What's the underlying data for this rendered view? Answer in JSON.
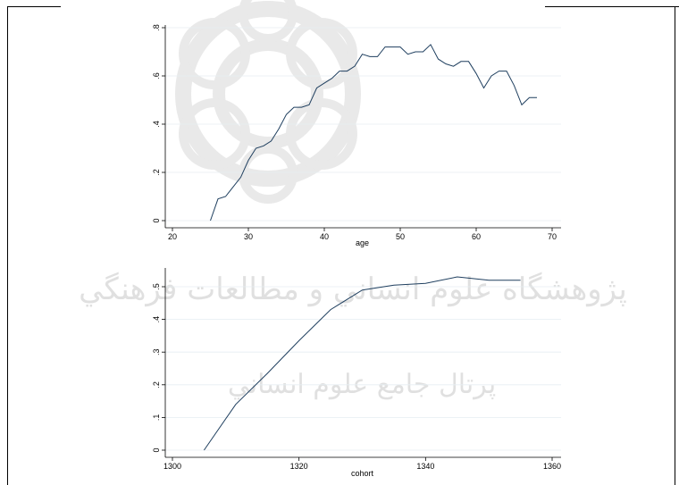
{
  "chart_data": [
    {
      "type": "line",
      "xlabel": "age",
      "ylabel": "",
      "xlim": [
        20,
        70
      ],
      "ylim": [
        0,
        0.8
      ],
      "xticks": [
        "20",
        "30",
        "40",
        "50",
        "60",
        "70"
      ],
      "xtick_values": [
        20,
        30,
        40,
        50,
        60,
        70
      ],
      "yticks": [
        "0",
        ".2",
        ".4",
        ".6",
        ".8"
      ],
      "ytick_values": [
        0,
        0.2,
        0.4,
        0.6,
        0.8
      ],
      "grid": true,
      "series": [
        {
          "x": [
            25,
            26,
            27,
            28,
            29,
            30,
            31,
            32,
            33,
            34,
            35,
            36,
            37,
            38,
            39,
            40,
            41,
            42,
            43,
            44,
            45,
            46,
            47,
            48,
            49,
            50,
            51,
            52,
            53,
            54,
            55,
            56,
            57,
            58,
            59,
            60,
            61,
            62,
            63,
            64,
            65,
            66,
            67,
            68
          ],
          "values": [
            0.0,
            0.09,
            0.1,
            0.14,
            0.18,
            0.25,
            0.3,
            0.31,
            0.33,
            0.38,
            0.44,
            0.47,
            0.47,
            0.48,
            0.55,
            0.57,
            0.59,
            0.62,
            0.62,
            0.64,
            0.69,
            0.68,
            0.68,
            0.72,
            0.72,
            0.72,
            0.69,
            0.7,
            0.7,
            0.73,
            0.67,
            0.65,
            0.64,
            0.66,
            0.66,
            0.61,
            0.55,
            0.6,
            0.62,
            0.62,
            0.56,
            0.48,
            0.51,
            0.51
          ],
          "color": "#1f3f5f"
        }
      ]
    },
    {
      "type": "line",
      "xlabel": "cohort",
      "ylabel": "",
      "xlim": [
        1300,
        1360
      ],
      "ylim": [
        0,
        0.5
      ],
      "xticks": [
        "1300",
        "1320",
        "1340",
        "1360"
      ],
      "xtick_values": [
        1300,
        1320,
        1340,
        1360
      ],
      "yticks": [
        "0",
        ".1",
        ".2",
        ".3",
        ".4",
        ".5"
      ],
      "ytick_values": [
        0,
        0.1,
        0.2,
        0.3,
        0.4,
        0.5
      ],
      "grid": true,
      "series": [
        {
          "x": [
            1305,
            1310,
            1315,
            1320,
            1325,
            1330,
            1335,
            1340,
            1345,
            1350,
            1355
          ],
          "values": [
            0.0,
            0.14,
            0.235,
            0.335,
            0.43,
            0.49,
            0.505,
            0.51,
            0.53,
            0.52,
            0.52
          ],
          "color": "#1f3f5f"
        }
      ]
    }
  ],
  "watermark": {
    "line1": "ﭘﮋﻭﻫﺸﮕﺎﻩ ﻋﻠﻮﻡ ﺍﻧﺴﺎﻧﻲ ﻭ ﻣﻄﺎﻟﻌﺎﺕ ﻓﺮﻫﻨﮕﻲ",
    "line2": "ﭘﺮﺗﺎﻝ ﺟﺎﻣﻊ ﻋﻠﻮﻡ ﺍﻧﺴﺎﻧﻲ"
  }
}
